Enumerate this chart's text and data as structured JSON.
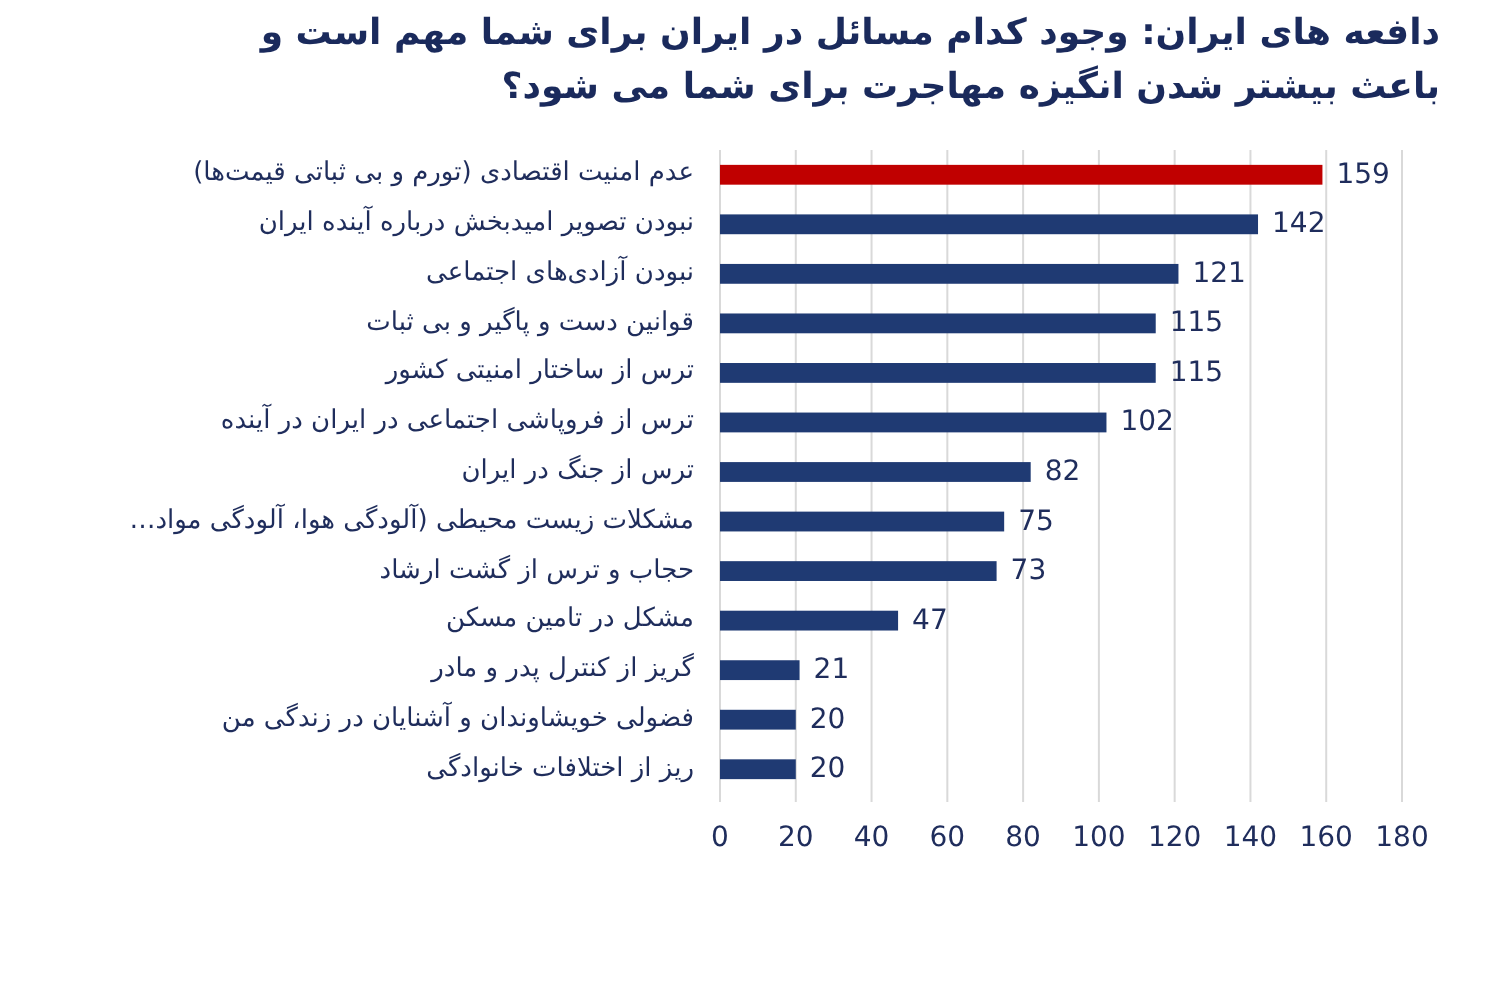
{
  "chart_data": {
    "type": "bar",
    "orientation": "horizontal",
    "title": "دافعه های ایران: وجود کدام مسائل در ایران برای شما مهم است و باعث بیشتر شدن انگیزه مهاجرت برای شما می شود؟",
    "categories": [
      "عدم امنیت اقتصادی (تورم و بی ثباتی قیمت‌ها)",
      "نبودن تصویر امیدبخش درباره آینده ایران",
      "نبودن آزادی‌های اجتماعی",
      "قوانین دست و پاگیر و بی ثبات",
      "ترس از ساختار امنیتی کشور",
      "ترس از فروپاشی اجتماعی در ایران در آینده",
      "ترس از جنگ در ایران",
      "مشکلات زیست محیطی (آلودگی هوا، آلودگی مواد…",
      "حجاب و ترس از گشت ارشاد",
      "مشکل در تامین مسکن",
      "گریز از کنترل پدر و مادر",
      "فضولی خویشاوندان و آشنایان در زندگی من",
      "ریز از اختلافات خانوادگی"
    ],
    "values": [
      159,
      142,
      121,
      115,
      115,
      102,
      82,
      75,
      73,
      47,
      21,
      20,
      20
    ],
    "colors": [
      "#c00000",
      "#1f3a73",
      "#1f3a73",
      "#1f3a73",
      "#1f3a73",
      "#1f3a73",
      "#1f3a73",
      "#1f3a73",
      "#1f3a73",
      "#1f3a73",
      "#1f3a73",
      "#1f3a73",
      "#1f3a73"
    ],
    "xlim": [
      0,
      180
    ],
    "xticks": [
      0,
      20,
      40,
      60,
      80,
      100,
      120,
      140,
      160,
      180
    ],
    "grid": "x",
    "data_labels": true
  }
}
